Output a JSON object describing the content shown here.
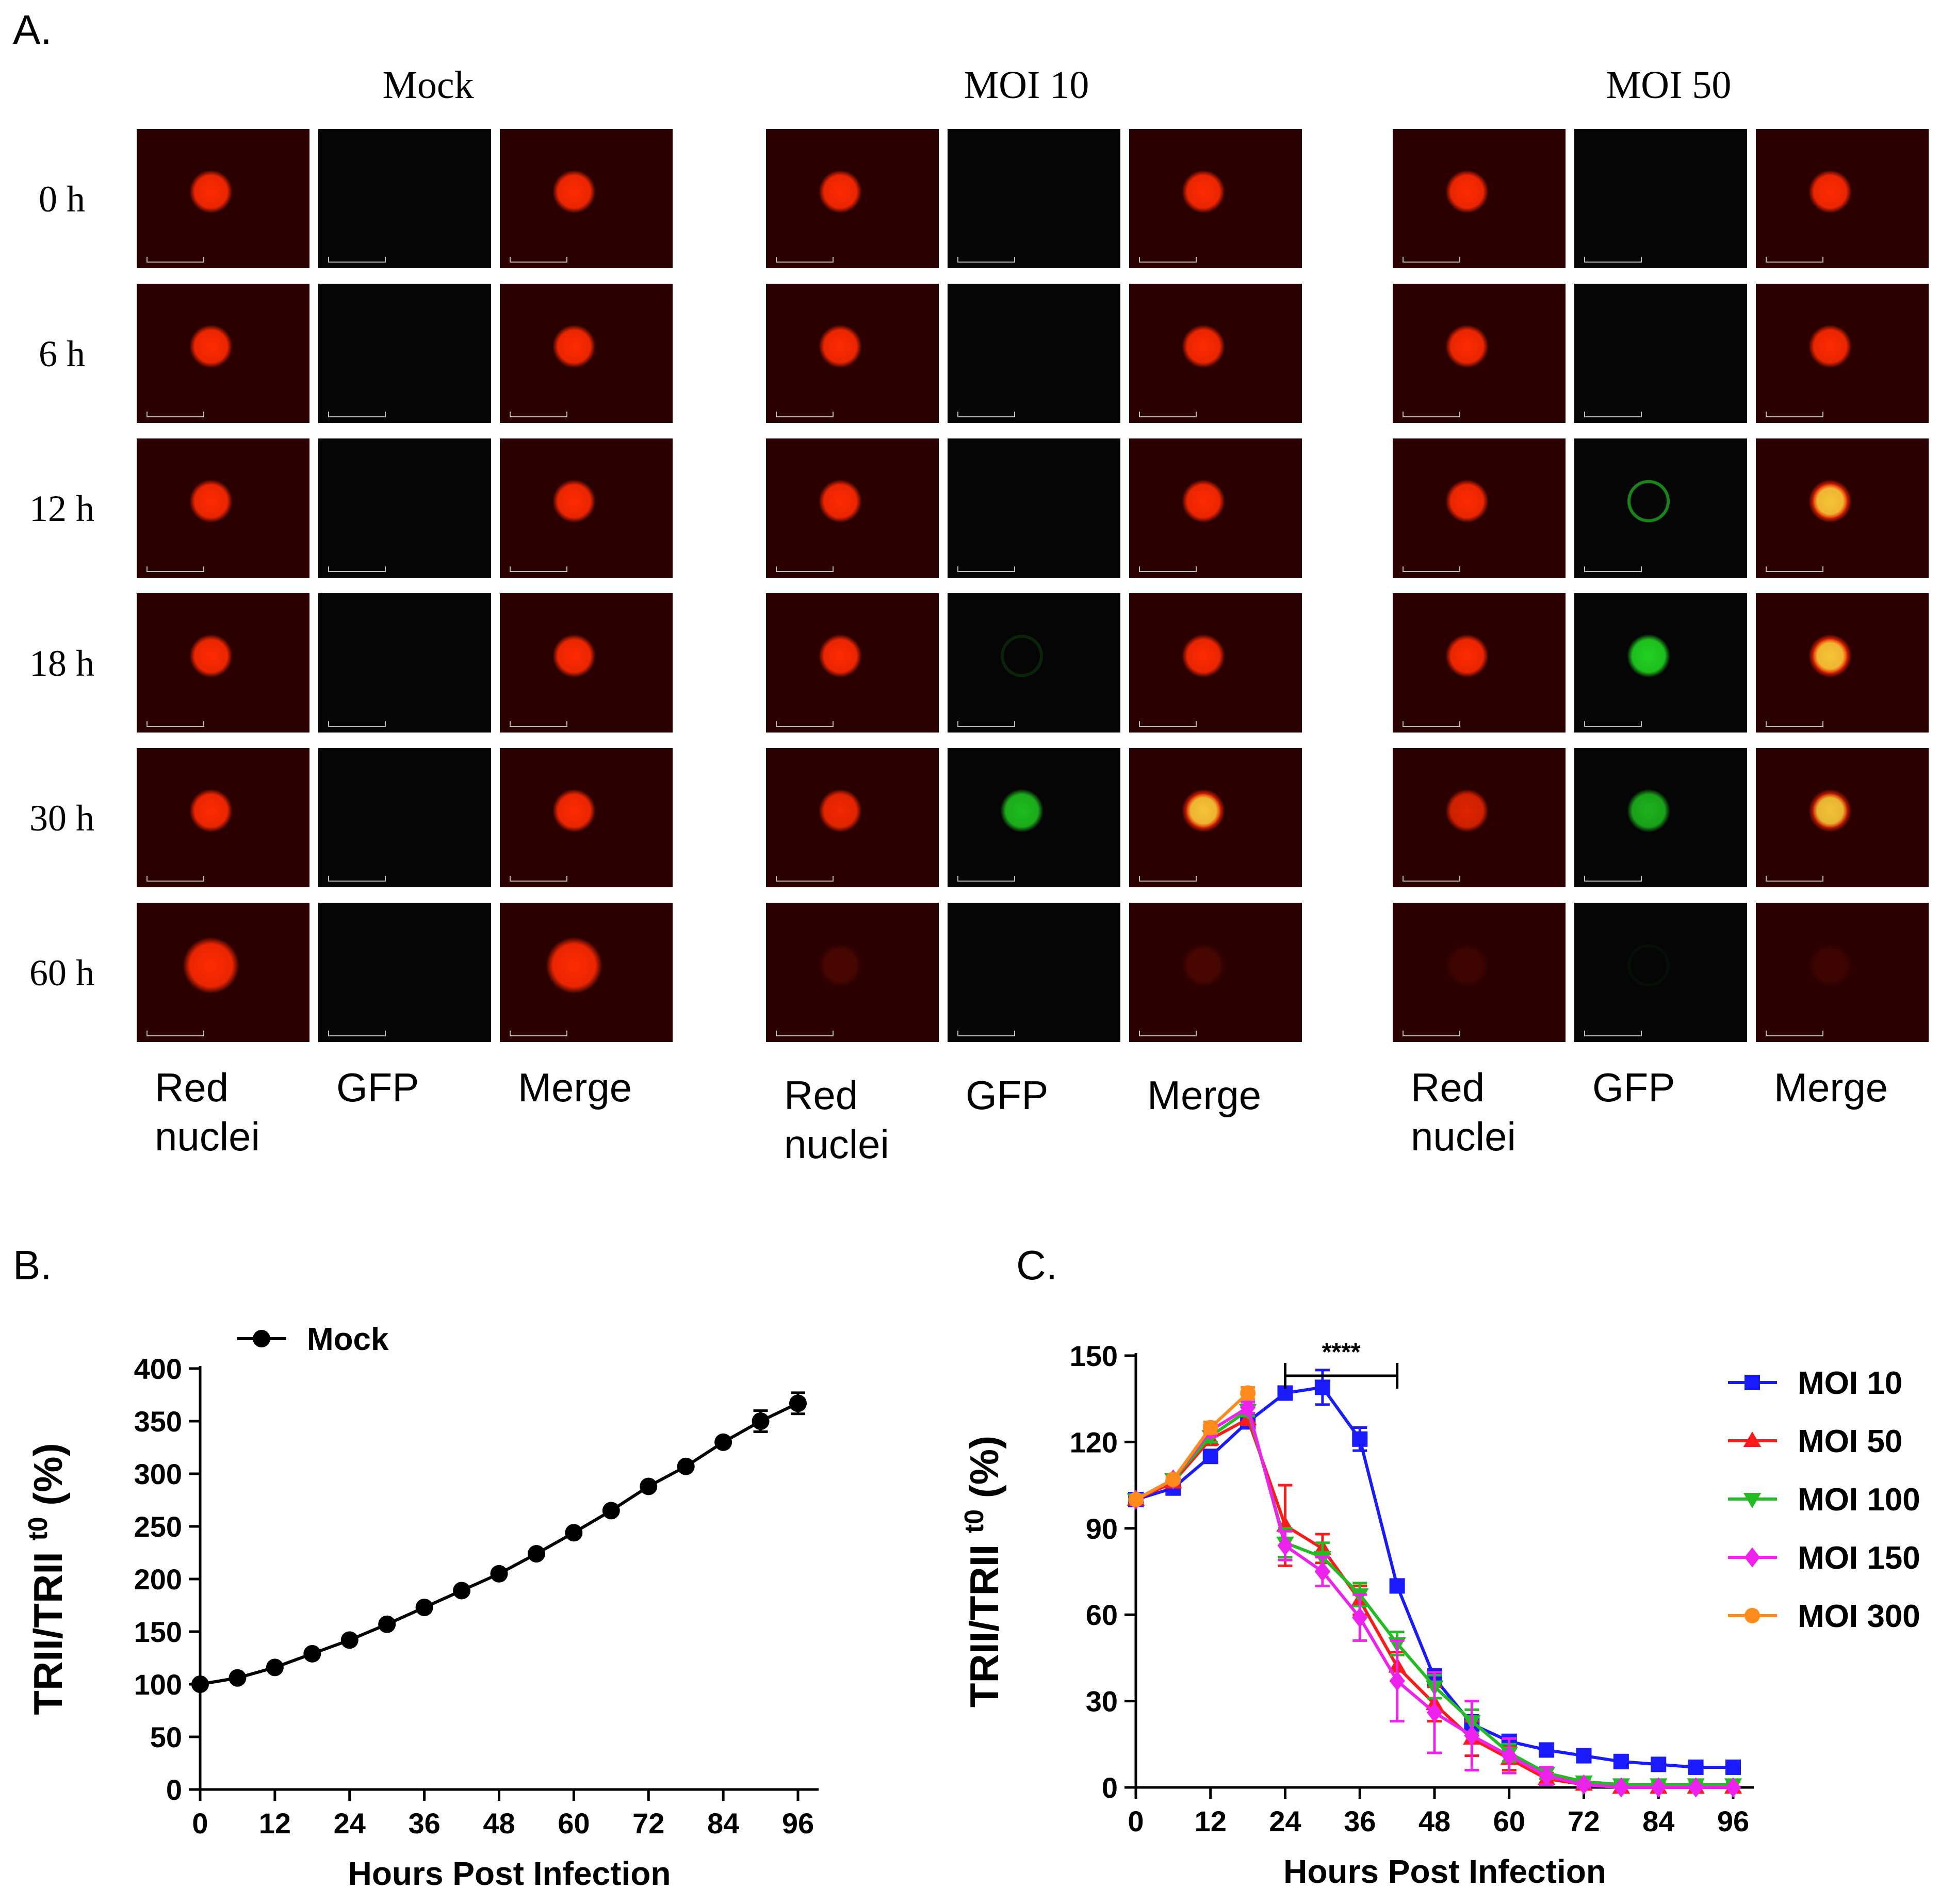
{
  "panel_letters": {
    "a": "A.",
    "b": "B.",
    "c": "C."
  },
  "panel_a": {
    "groups": [
      {
        "title": "Mock",
        "channels": [
          "Red nuclei",
          "GFP",
          "Merge"
        ],
        "green_intensity": [
          0,
          0,
          0,
          0,
          0,
          0
        ],
        "red_intensity": [
          1,
          1,
          1,
          1,
          1,
          1
        ]
      },
      {
        "title": "MOI 10",
        "channels": [
          "Red nuclei",
          "GFP",
          "Merge"
        ],
        "green_intensity": [
          0,
          0,
          0,
          0.15,
          0.85,
          0
        ],
        "red_intensity": [
          1,
          1,
          1,
          1,
          0.95,
          0.15
        ]
      },
      {
        "title": "MOI 50",
        "channels": [
          "Red nuclei",
          "GFP",
          "Merge"
        ],
        "green_intensity": [
          0,
          0,
          0.6,
          0.95,
          0.8,
          0.05
        ],
        "red_intensity": [
          1,
          1,
          1,
          1,
          0.85,
          0.1
        ]
      }
    ],
    "time_labels": [
      "0 h",
      "6 h",
      "12 h",
      "18 h",
      "30 h",
      "60 h"
    ],
    "colors": {
      "red": "#ff2a00",
      "green": "#22dd22",
      "yellow": "#f0e040",
      "background": "#2a0000",
      "dark": "#050505"
    }
  },
  "chart_data": [
    {
      "panel": "B",
      "type": "line",
      "title": "",
      "xlabel": "Hours Post Infection",
      "ylabel": "TRII/TRII",
      "ylabel_sup": "t0",
      "ylabel_unit": "(%)",
      "xlim": [
        0,
        96
      ],
      "ylim": [
        0,
        400
      ],
      "xticks": [
        0,
        12,
        24,
        36,
        48,
        60,
        72,
        84,
        96
      ],
      "yticks": [
        0,
        50,
        100,
        150,
        200,
        250,
        300,
        350,
        400
      ],
      "legend_position": "top-left",
      "series": [
        {
          "name": "Mock",
          "color": "#000000",
          "marker": "circle",
          "x": [
            0,
            6,
            12,
            18,
            24,
            30,
            36,
            42,
            48,
            54,
            60,
            66,
            72,
            78,
            84,
            90,
            96
          ],
          "values": [
            100,
            106,
            116,
            129,
            142,
            157,
            173,
            189,
            205,
            224,
            244,
            265,
            288,
            307,
            330,
            350,
            367
          ],
          "errors": [
            2,
            2,
            2,
            2,
            2,
            2,
            2,
            2,
            2,
            2,
            2,
            2,
            2,
            3,
            3,
            10,
            10
          ]
        }
      ]
    },
    {
      "panel": "C",
      "type": "line",
      "title": "",
      "xlabel": "Hours Post Infection",
      "ylabel": "TRII/TRII",
      "ylabel_sup": "t0",
      "ylabel_unit": "(%)",
      "xlim": [
        0,
        96
      ],
      "ylim": [
        0,
        150
      ],
      "xticks": [
        0,
        12,
        24,
        36,
        48,
        60,
        72,
        84,
        96
      ],
      "yticks": [
        0,
        30,
        60,
        90,
        120,
        150
      ],
      "legend_position": "right",
      "annotation": {
        "text": "****",
        "x_start": 24,
        "x_end": 42,
        "y": 143
      },
      "series": [
        {
          "name": "MOI 10",
          "color": "#1a1aff",
          "marker": "square",
          "x": [
            0,
            6,
            12,
            18,
            24,
            30,
            36,
            42,
            48,
            54,
            60,
            66,
            72,
            78,
            84,
            90,
            96
          ],
          "values": [
            100,
            104,
            115,
            127,
            137,
            139,
            121,
            70,
            38,
            22,
            16,
            13,
            11,
            9,
            8,
            7,
            7
          ],
          "errors": [
            1,
            1,
            2,
            2,
            2,
            6,
            4,
            2,
            3,
            3,
            2,
            2,
            1,
            1,
            1,
            1,
            1
          ]
        },
        {
          "name": "MOI 50",
          "color": "#ff1a1a",
          "marker": "triangle-up",
          "x": [
            0,
            6,
            12,
            18,
            24,
            30,
            36,
            42,
            48,
            54,
            60,
            66,
            72,
            78,
            84,
            90,
            96
          ],
          "values": [
            100,
            106,
            121,
            128,
            91,
            83,
            65,
            42,
            29,
            17,
            10,
            3,
            1,
            0,
            0,
            0,
            0
          ],
          "errors": [
            1,
            1,
            2,
            2,
            14,
            5,
            5,
            5,
            6,
            6,
            4,
            2,
            1,
            0,
            0,
            0,
            0
          ]
        },
        {
          "name": "MOI 100",
          "color": "#22bb22",
          "marker": "triangle-down",
          "x": [
            0,
            6,
            12,
            18,
            24,
            30,
            36,
            42,
            48,
            54,
            60,
            66,
            72,
            78,
            84,
            90,
            96
          ],
          "values": [
            100,
            107,
            122,
            131,
            85,
            80,
            67,
            50,
            35,
            23,
            12,
            5,
            2,
            1,
            1,
            1,
            1
          ],
          "errors": [
            1,
            1,
            2,
            2,
            5,
            5,
            4,
            4,
            4,
            4,
            3,
            2,
            1,
            1,
            1,
            1,
            1
          ]
        },
        {
          "name": "MOI 150",
          "color": "#ee22ee",
          "marker": "diamond",
          "x": [
            0,
            6,
            12,
            18,
            24,
            30,
            36,
            42,
            48,
            54,
            60,
            66,
            72,
            78,
            84,
            90,
            96
          ],
          "values": [
            100,
            107,
            124,
            132,
            84,
            75,
            59,
            37,
            26,
            18,
            11,
            4,
            1,
            0,
            0,
            0,
            0
          ],
          "errors": [
            1,
            1,
            2,
            2,
            5,
            5,
            8,
            14,
            14,
            12,
            6,
            3,
            1,
            0,
            0,
            0,
            0
          ]
        },
        {
          "name": "MOI 300",
          "color": "#ff8c1a",
          "marker": "circle",
          "x": [
            0,
            6,
            12,
            18
          ],
          "values": [
            100,
            107,
            125,
            137
          ],
          "errors": [
            1,
            1,
            2,
            2
          ]
        }
      ]
    }
  ]
}
